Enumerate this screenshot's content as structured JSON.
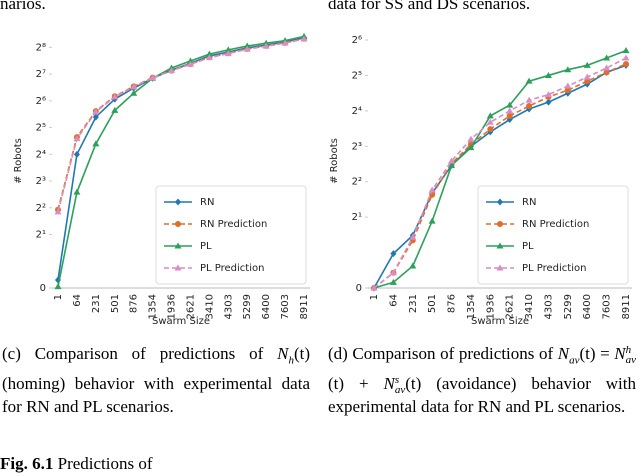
{
  "header_fragments": [
    "narios.",
    "data for SS and DS scenarios."
  ],
  "chart_data": [
    {
      "type": "line",
      "ylabel": "# Robots",
      "xlabel": "Swarm Size",
      "yscale": "symlog",
      "grid": false,
      "legend": "lower right",
      "categories": [
        "1",
        "64",
        "231",
        "501",
        "876",
        "1354",
        "1936",
        "2621",
        "3410",
        "4303",
        "5299",
        "6400",
        "7603",
        "8911"
      ],
      "ylim": [
        0,
        362
      ],
      "yticks": [
        0,
        {
          "value": 2,
          "label": "2¹"
        },
        {
          "value": 4,
          "label": "2²"
        },
        {
          "value": 8,
          "label": "2³"
        },
        {
          "value": 16,
          "label": "2⁴"
        },
        {
          "value": 32,
          "label": "2⁵"
        },
        {
          "value": 64,
          "label": "2⁶"
        },
        {
          "value": 128,
          "label": "2⁷"
        },
        {
          "value": 256,
          "label": "2⁸"
        }
      ],
      "series": [
        {
          "name": "RN",
          "color": "#1f77b4",
          "marker": "diamond",
          "linestyle": "solid",
          "values": [
            0.3,
            16,
            42,
            67,
            89,
            115,
            142,
            169,
            205,
            227,
            252,
            272,
            294,
            328
          ]
        },
        {
          "name": "RN Prediction",
          "color": "#dd6f2b",
          "marker": "circle",
          "linestyle": "dashed",
          "values": [
            3.8,
            25,
            49,
            72,
            93,
            117,
            140,
            166,
            198,
            220,
            246,
            266,
            288,
            320
          ]
        },
        {
          "name": "PL",
          "color": "#2ca05a",
          "marker": "triangle",
          "linestyle": "solid",
          "values": [
            0.05,
            6,
            21,
            50,
            78,
            115,
            150,
            180,
            215,
            240,
            265,
            285,
            305,
            340
          ]
        },
        {
          "name": "PL Prediction",
          "color": "#d98cc6",
          "marker": "triangle",
          "linestyle": "dashed",
          "values": [
            3.6,
            24,
            48,
            71,
            92,
            116,
            140,
            165,
            196,
            218,
            244,
            264,
            286,
            318
          ]
        }
      ]
    },
    {
      "type": "line",
      "ylabel": "# Robots",
      "xlabel": "Swarm Size",
      "yscale": "symlog",
      "grid": false,
      "legend": "lower right",
      "categories": [
        "1",
        "64",
        "231",
        "501",
        "876",
        "1354",
        "1936",
        "2621",
        "3410",
        "4303",
        "5299",
        "6400",
        "7603",
        "8911"
      ],
      "ylim": [
        0,
        72
      ],
      "yticks": [
        0,
        {
          "value": 2,
          "label": "2¹"
        },
        {
          "value": 4,
          "label": "2²"
        },
        {
          "value": 8,
          "label": "2³"
        },
        {
          "value": 16,
          "label": "2⁴"
        },
        {
          "value": 32,
          "label": "2⁵"
        },
        {
          "value": 64,
          "label": "2⁶"
        }
      ],
      "series": [
        {
          "name": "RN",
          "color": "#1f77b4",
          "marker": "diamond",
          "linestyle": "solid",
          "values": [
            0,
            0.97,
            1.4,
            3.2,
            5.5,
            8,
            10.6,
            13.5,
            16.6,
            19,
            22.6,
            27,
            34,
            39
          ]
        },
        {
          "name": "RN Prediction",
          "color": "#dd6f2b",
          "marker": "circle",
          "linestyle": "dashed",
          "values": [
            0,
            0.43,
            1.27,
            3.1,
            5.7,
            8.3,
            11.2,
            14.5,
            17.6,
            21,
            24,
            28.6,
            34,
            40
          ]
        },
        {
          "name": "PL",
          "color": "#2ca05a",
          "marker": "triangle",
          "linestyle": "solid",
          "values": [
            0,
            0.16,
            0.62,
            1.85,
            5.5,
            7.8,
            14.5,
            17.9,
            28.6,
            32,
            35.8,
            39,
            45,
            52
          ]
        },
        {
          "name": "PL Prediction",
          "color": "#d98cc6",
          "marker": "triangle",
          "linestyle": "dashed",
          "values": [
            0,
            0.43,
            1.35,
            3.4,
            6,
            9.2,
            12.8,
            16,
            19.7,
            22,
            26,
            31,
            37,
            45
          ]
        }
      ]
    }
  ],
  "captions": [
    {
      "prefix": "(c) Comparison of predictions of",
      "math": [
        {
          "base": "N",
          "sub": "h",
          "after": "(t)"
        }
      ],
      "suffix": "(homing) behavior with experimental data for RN and PL scenarios."
    },
    {
      "prefix": "(d) Comparison of predictions of",
      "math": [
        {
          "base": "N",
          "sub": "av",
          "after": "(t) ="
        },
        {
          "base": "N",
          "sub": "av",
          "sup": "h",
          "after": "(t) +"
        },
        {
          "base": "N",
          "sub": "av",
          "sup": "s",
          "after": "(t)"
        }
      ],
      "suffix": "(avoidance) behavior with experimental data for RN and PL scenarios."
    }
  ],
  "figure_caption": {
    "label": "Fig. 6.1",
    "text": "Predictions of"
  }
}
